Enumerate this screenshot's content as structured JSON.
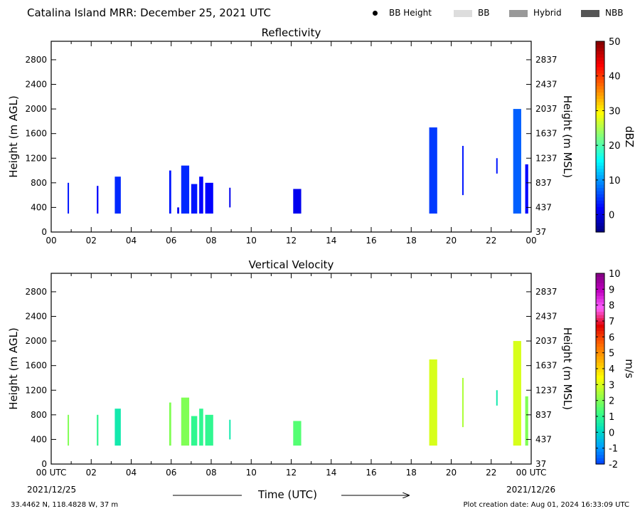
{
  "header": {
    "title": "Catalina Island MRR:  December 25, 2021 UTC",
    "legend": [
      {
        "label": "BB Height",
        "kind": "dot",
        "color": "#000000"
      },
      {
        "label": "BB",
        "kind": "swatch",
        "color": "#dddddd"
      },
      {
        "label": "Hybrid",
        "kind": "swatch",
        "color": "#999999"
      },
      {
        "label": "NBB",
        "kind": "swatch",
        "color": "#555555"
      }
    ]
  },
  "xaxis": {
    "label": "Time (UTC)",
    "range": [
      0,
      24
    ],
    "tick_values": [
      0,
      2,
      4,
      6,
      8,
      10,
      12,
      14,
      16,
      18,
      20,
      22,
      24
    ],
    "tick_labels_top": [
      "00",
      "02",
      "04",
      "06",
      "08",
      "10",
      "12",
      "14",
      "16",
      "18",
      "20",
      "22",
      "00"
    ],
    "tick_labels_bottom": [
      "00 UTC",
      "02",
      "04",
      "06",
      "08",
      "10",
      "12",
      "14",
      "16",
      "18",
      "20",
      "22",
      "00 UTC"
    ],
    "date_start": "2021/12/25",
    "date_end": "2021/12/26"
  },
  "footer": {
    "location": "33.4462 N, 118.4828 W, 37 m",
    "created": "Plot creation date: Aug 01, 2024 16:33:09 UTC"
  },
  "chart_data": [
    {
      "type": "heatmap",
      "title": "Reflectivity",
      "ylabel": "Height (m AGL)",
      "ylabel_right": "Height (m MSL)",
      "ylim": [
        0,
        3100
      ],
      "yticks": [
        0,
        400,
        800,
        1200,
        1600,
        2000,
        2400,
        2800
      ],
      "yticks_right": [
        37,
        437,
        837,
        1237,
        1637,
        2037,
        2437,
        2837
      ],
      "colorbar": {
        "label": "dBZ",
        "range": [
          -5,
          50
        ],
        "ticks": [
          0,
          10,
          20,
          30,
          40,
          50
        ],
        "colors": [
          "#000080",
          "#0000ff",
          "#0080ff",
          "#00ffff",
          "#80ff80",
          "#ffff00",
          "#ff8000",
          "#ff0000",
          "#800000"
        ]
      },
      "series": [
        {
          "t0": 0.82,
          "t1": 0.88,
          "bottom": 300,
          "top": 800,
          "value": 3
        },
        {
          "t0": 2.28,
          "t1": 2.36,
          "bottom": 300,
          "top": 750,
          "value": 2
        },
        {
          "t0": 3.18,
          "t1": 3.48,
          "bottom": 300,
          "top": 900,
          "value": 4
        },
        {
          "t0": 5.9,
          "t1": 6.0,
          "bottom": 300,
          "top": 1000,
          "value": 3
        },
        {
          "t0": 6.3,
          "t1": 6.4,
          "bottom": 300,
          "top": 400,
          "value": 1
        },
        {
          "t0": 6.5,
          "t1": 6.9,
          "bottom": 300,
          "top": 1080,
          "value": 4
        },
        {
          "t0": 7.0,
          "t1": 7.3,
          "bottom": 300,
          "top": 780,
          "value": 3
        },
        {
          "t0": 7.4,
          "t1": 7.6,
          "bottom": 300,
          "top": 900,
          "value": 2
        },
        {
          "t0": 7.7,
          "t1": 8.1,
          "bottom": 300,
          "top": 800,
          "value": 2
        },
        {
          "t0": 8.9,
          "t1": 8.96,
          "bottom": 400,
          "top": 720,
          "value": 1
        },
        {
          "t0": 12.1,
          "t1": 12.5,
          "bottom": 300,
          "top": 700,
          "value": 1
        },
        {
          "t0": 18.9,
          "t1": 19.3,
          "bottom": 300,
          "top": 1700,
          "value": 5
        },
        {
          "t0": 20.55,
          "t1": 20.6,
          "bottom": 600,
          "top": 1400,
          "value": 3
        },
        {
          "t0": 22.25,
          "t1": 22.3,
          "bottom": 950,
          "top": 1200,
          "value": 3
        },
        {
          "t0": 23.1,
          "t1": 23.5,
          "bottom": 300,
          "top": 2000,
          "value": 7
        },
        {
          "t0": 23.7,
          "t1": 23.85,
          "bottom": 300,
          "top": 1100,
          "value": 2
        }
      ]
    },
    {
      "type": "heatmap",
      "title": "Vertical Velocity",
      "ylabel": "Height (m AGL)",
      "ylabel_right": "Height (m MSL)",
      "ylim": [
        0,
        3100
      ],
      "yticks": [
        0,
        400,
        800,
        1200,
        1600,
        2000,
        2400,
        2800
      ],
      "yticks_right": [
        37,
        437,
        837,
        1237,
        1637,
        2037,
        2437,
        2837
      ],
      "colorbar": {
        "label": "m/s",
        "range": [
          -2,
          10
        ],
        "ticks": [
          -2,
          -1,
          0,
          1,
          2,
          3,
          4,
          5,
          6,
          7,
          8,
          9,
          10
        ],
        "colors": [
          "#0040ff",
          "#00a0ff",
          "#00e0c0",
          "#40ff80",
          "#a0ff40",
          "#ffff00",
          "#ffb000",
          "#ff6000",
          "#e00000",
          "#ff60ff",
          "#c000c0",
          "#800080"
        ]
      },
      "series": [
        {
          "t0": 0.82,
          "t1": 0.88,
          "bottom": 300,
          "top": 800,
          "value": 2
        },
        {
          "t0": 2.28,
          "t1": 2.36,
          "bottom": 300,
          "top": 800,
          "value": 1
        },
        {
          "t0": 3.18,
          "t1": 3.48,
          "bottom": 300,
          "top": 900,
          "value": 0.5
        },
        {
          "t0": 5.9,
          "t1": 6.0,
          "bottom": 300,
          "top": 1000,
          "value": 2
        },
        {
          "t0": 6.5,
          "t1": 6.9,
          "bottom": 300,
          "top": 1080,
          "value": 2
        },
        {
          "t0": 7.0,
          "t1": 7.3,
          "bottom": 300,
          "top": 780,
          "value": 1
        },
        {
          "t0": 7.4,
          "t1": 7.6,
          "bottom": 300,
          "top": 900,
          "value": 1
        },
        {
          "t0": 7.7,
          "t1": 8.1,
          "bottom": 300,
          "top": 800,
          "value": 1
        },
        {
          "t0": 8.9,
          "t1": 8.96,
          "bottom": 400,
          "top": 720,
          "value": 0.5
        },
        {
          "t0": 12.1,
          "t1": 12.5,
          "bottom": 300,
          "top": 700,
          "value": 1.5
        },
        {
          "t0": 18.9,
          "t1": 19.3,
          "bottom": 300,
          "top": 1700,
          "value": 3
        },
        {
          "t0": 20.55,
          "t1": 20.6,
          "bottom": 600,
          "top": 1400,
          "value": 2.5
        },
        {
          "t0": 22.25,
          "t1": 22.3,
          "bottom": 950,
          "top": 1200,
          "value": 0.5
        },
        {
          "t0": 23.1,
          "t1": 23.5,
          "bottom": 300,
          "top": 2000,
          "value": 3
        },
        {
          "t0": 23.7,
          "t1": 23.85,
          "bottom": 300,
          "top": 1100,
          "value": 2
        }
      ]
    }
  ]
}
